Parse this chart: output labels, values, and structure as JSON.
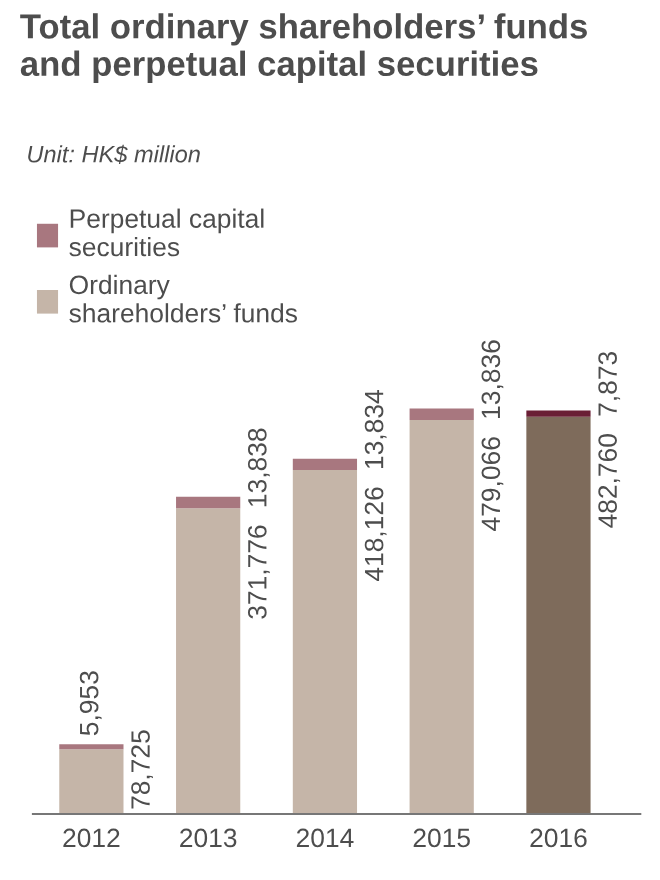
{
  "chart_data": {
    "type": "bar",
    "stacked": true,
    "title": "Total ordinary shareholders’ funds and perpetual capital securities",
    "subtitle": "Unit: HK$ million",
    "categories": [
      "2012",
      "2013",
      "2014",
      "2015",
      "2016"
    ],
    "series": [
      {
        "name": "Ordinary\nshareholders’ funds",
        "color": "#c5b5a8",
        "colors": [
          "#c5b5a8",
          "#c5b5a8",
          "#c5b5a8",
          "#c5b5a8",
          "#7e6b5b"
        ],
        "values": [
          78725,
          371776,
          418126,
          479066,
          482760
        ],
        "value_labels": [
          "78,725",
          "371,776",
          "418,126",
          "479,066",
          "482,760"
        ]
      },
      {
        "name": "Perpetual capital\nsecurities",
        "color": "#a8777f",
        "colors": [
          "#a8777f",
          "#a8777f",
          "#a8777f",
          "#a8777f",
          "#6a1f35"
        ],
        "values": [
          5953,
          13838,
          13834,
          13836,
          7873
        ],
        "value_labels": [
          "5,953",
          "13,838",
          "13,834",
          "13,836",
          "7,873"
        ]
      }
    ],
    "legend": "top left",
    "grid": false
  }
}
